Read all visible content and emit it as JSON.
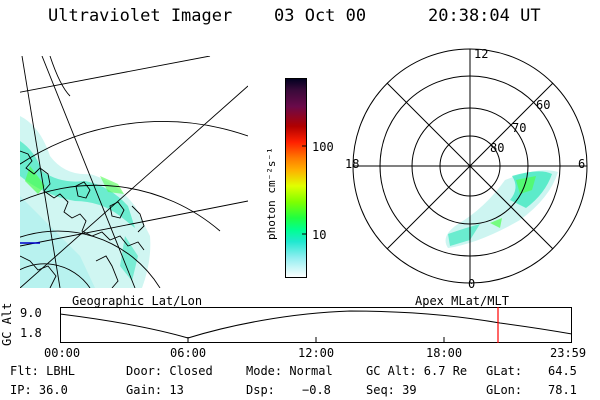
{
  "header": {
    "instrument": "Ultraviolet Imager",
    "date": "03 Oct 00",
    "time": "20:38:04 UT"
  },
  "colorbar": {
    "unit_label": "photon cm⁻²s⁻¹",
    "ticks": [
      "100",
      "10"
    ],
    "colors": [
      "#000020",
      "#3a0a3a",
      "#5a0a4a",
      "#800020",
      "#b00000",
      "#e00000",
      "#ff3000",
      "#ff7000",
      "#ffa000",
      "#ffd000",
      "#e0ff00",
      "#a0ff00",
      "#50ff00",
      "#00ff40",
      "#00ff90",
      "#00f0c0",
      "#40e8e0",
      "#a0f0f0",
      "#e0ffff",
      "#ffffff"
    ]
  },
  "geo_map": {
    "label": "Geographic Lat/Lon"
  },
  "polar_plot": {
    "label": "Apex MLat/MLT",
    "mlt_labels": {
      "top": "12",
      "left": "18",
      "right": "6",
      "bottom": "0"
    },
    "lat_labels": [
      "60",
      "70",
      "80"
    ]
  },
  "altitude_plot": {
    "ylabel": "GC Alt",
    "yticks": [
      "9.0",
      "1.8"
    ],
    "xticks": [
      "00:00",
      "06:00",
      "12:00",
      "18:00",
      "23:59"
    ],
    "marker_color": "#ff0000"
  },
  "info": {
    "row1": {
      "flt": "Flt: LBHL",
      "door": "Door: Closed",
      "mode": "Mode: Normal",
      "gcalt": "GC Alt: 6.7 Re",
      "glat_label": "GLat:",
      "glat_value": "64.5"
    },
    "row2": {
      "ip": "IP: 36.0",
      "gain": "Gain: 13",
      "dsp_label": "Dsp:",
      "dsp_value": "−0.8",
      "seq": "Seq: 39",
      "glon_label": "GLon:",
      "glon_value": "78.1"
    }
  }
}
